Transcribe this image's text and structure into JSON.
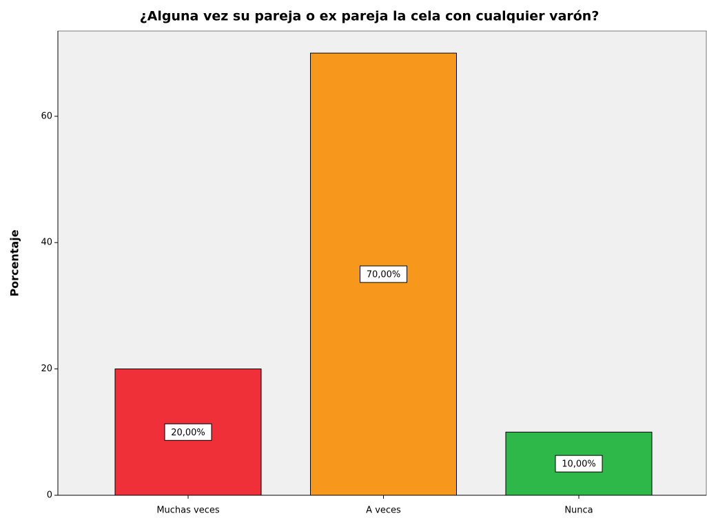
{
  "chart_data": {
    "type": "bar",
    "title": "¿Alguna vez su pareja o ex pareja la cela con cualquier varón?",
    "ylabel": "Porcentaje",
    "categories": [
      "Muchas veces",
      "A veces",
      "Nunca"
    ],
    "values": [
      20,
      70,
      10
    ],
    "value_labels": [
      "20,00%",
      "70,00%",
      "10,00%"
    ],
    "colors": [
      "#ef3038",
      "#f7981d",
      "#2eb84a"
    ],
    "ylim": [
      0,
      73.5
    ],
    "yticks": [
      0,
      20,
      40,
      60
    ],
    "grid": false
  }
}
